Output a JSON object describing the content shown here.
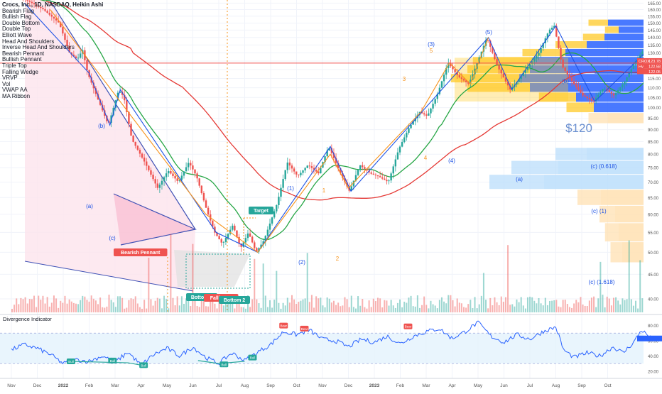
{
  "header": {
    "title": "Crocs, Inc., 1D, NASDAQ, Heikin Ashi",
    "indicators": [
      "Bearish Flag",
      "Bullish Flag",
      "Double Bottom",
      "Double Top",
      "Elliott Wave",
      "Head And Shoulders",
      "Inverse Head And Shoulders",
      "Bearish Pennant",
      "Bullish Pennant",
      "Triple Top",
      "Falling Wedge",
      "VRVP",
      "Vol",
      "VWAP AA",
      "MA Ribbon"
    ]
  },
  "chart_data": [
    {
      "type": "line",
      "title": "Crocs, Inc., 1D, NASDAQ, Heikin Ashi",
      "subtype": "heikin-ashi candlestick with volume, moving averages and Elliott wave annotations",
      "x_tick_labels": [
        "Nov",
        "Dec",
        "2022",
        "Feb",
        "Mar",
        "Apr",
        "May",
        "Jun",
        "Jul",
        "Aug",
        "Sep",
        "Oct",
        "Nov",
        "Dec",
        "2023",
        "Feb",
        "Mar",
        "Apr",
        "May",
        "Jun",
        "Jul",
        "Aug",
        "Sep",
        "Oct"
      ],
      "y_tick_labels": [
        "40.00",
        "45.00",
        "50.00",
        "55.00",
        "60.00",
        "65.00",
        "70.00",
        "75.00",
        "80.00",
        "85.00",
        "90.00",
        "95.00",
        "100.00",
        "105.00",
        "110.00",
        "115.00",
        "120.00",
        "125.00",
        "130.00",
        "135.00",
        "140.00",
        "145.00",
        "150.00",
        "155.00",
        "160.00",
        "165.00"
      ],
      "ylim": [
        37.5,
        167.5
      ],
      "scale": "log",
      "price_path": [
        {
          "t": 0,
          "v": 175
        },
        {
          "t": 1.3,
          "v": 160
        },
        {
          "t": 1.9,
          "v": 150
        },
        {
          "t": 2.3,
          "v": 130
        },
        {
          "t": 2.6,
          "v": 126
        },
        {
          "t": 2.8,
          "v": 132
        },
        {
          "t": 3.0,
          "v": 118
        },
        {
          "t": 3.4,
          "v": 104
        },
        {
          "t": 3.8,
          "v": 92
        },
        {
          "t": 4.2,
          "v": 109
        },
        {
          "t": 4.4,
          "v": 105
        },
        {
          "t": 4.7,
          "v": 86
        },
        {
          "t": 5.2,
          "v": 77
        },
        {
          "t": 5.7,
          "v": 68
        },
        {
          "t": 6.1,
          "v": 74
        },
        {
          "t": 6.5,
          "v": 70
        },
        {
          "t": 6.9,
          "v": 77
        },
        {
          "t": 7.2,
          "v": 72
        },
        {
          "t": 7.6,
          "v": 61
        },
        {
          "t": 7.9,
          "v": 55
        },
        {
          "t": 8.2,
          "v": 52
        },
        {
          "t": 8.6,
          "v": 57
        },
        {
          "t": 8.9,
          "v": 51
        },
        {
          "t": 9.2,
          "v": 55
        },
        {
          "t": 9.5,
          "v": 50
        },
        {
          "t": 9.8,
          "v": 53
        },
        {
          "t": 10.3,
          "v": 63
        },
        {
          "t": 10.7,
          "v": 77
        },
        {
          "t": 11.1,
          "v": 72
        },
        {
          "t": 11.5,
          "v": 76
        },
        {
          "t": 11.9,
          "v": 73
        },
        {
          "t": 12.3,
          "v": 83
        },
        {
          "t": 12.8,
          "v": 72
        },
        {
          "t": 13.1,
          "v": 67
        },
        {
          "t": 13.5,
          "v": 76
        },
        {
          "t": 13.9,
          "v": 73
        },
        {
          "t": 14.2,
          "v": 72
        },
        {
          "t": 14.6,
          "v": 70
        },
        {
          "t": 15.0,
          "v": 82
        },
        {
          "t": 15.4,
          "v": 91
        },
        {
          "t": 15.8,
          "v": 98
        },
        {
          "t": 16.1,
          "v": 96
        },
        {
          "t": 16.5,
          "v": 107
        },
        {
          "t": 16.9,
          "v": 124
        },
        {
          "t": 17.3,
          "v": 116
        },
        {
          "t": 17.7,
          "v": 112
        },
        {
          "t": 18.0,
          "v": 123
        },
        {
          "t": 18.4,
          "v": 140
        },
        {
          "t": 18.8,
          "v": 122
        },
        {
          "t": 19.3,
          "v": 109
        },
        {
          "t": 19.6,
          "v": 114
        },
        {
          "t": 20.0,
          "v": 122
        },
        {
          "t": 20.4,
          "v": 130
        },
        {
          "t": 20.8,
          "v": 145
        },
        {
          "t": 21.0,
          "v": 148
        },
        {
          "t": 21.3,
          "v": 122
        },
        {
          "t": 21.7,
          "v": 113
        },
        {
          "t": 22.1,
          "v": 106
        },
        {
          "t": 22.5,
          "v": 103
        },
        {
          "t": 22.9,
          "v": 110
        },
        {
          "t": 23.3,
          "v": 106
        },
        {
          "t": 23.7,
          "v": 113
        },
        {
          "t": 24.1,
          "v": 124
        },
        {
          "t": 24.4,
          "v": 131
        },
        {
          "t": 24.7,
          "v": 123.3
        }
      ],
      "last_price": 123.78,
      "price_labels": [
        {
          "label": "CROX",
          "value": "123.78",
          "color": "#ef5350"
        },
        {
          "label": "Hv",
          "value": "122.58",
          "color": "#ef5350"
        },
        {
          "label": "",
          "value": "122.05",
          "color": "#ef5350"
        }
      ],
      "annotations": [
        "(b)",
        "(a)",
        "(c)",
        "(1)",
        "(2)",
        "(3)",
        "(4)",
        "(5)",
        "1",
        "2",
        "3",
        "4",
        "5",
        "(b)",
        "(a)",
        "$120",
        "(c) (0.618)",
        "(c) (1)",
        "(c) (1.618)",
        "Target",
        "Bearish Pennant",
        "Bottom 1",
        "Falling W",
        "Bottom 2"
      ],
      "target_price_label": "$120",
      "grid": true,
      "colors": {
        "up": "#26a69a",
        "down": "#ef5350",
        "ma_slow": "#e53935",
        "ma_fast": "#26a645",
        "wave_blue": "#1e53e5",
        "wave_orange": "#f7931a"
      }
    },
    {
      "type": "line",
      "title": "Divergence Indicator",
      "y_tick_labels": [
        "80.00",
        "60.00",
        "40.00",
        "20.00"
      ],
      "ylim": [
        18,
        88
      ],
      "band": [
        30,
        70
      ],
      "series_path": [
        {
          "t": 0,
          "v": 48
        },
        {
          "t": 0.5,
          "v": 55
        },
        {
          "t": 1.0,
          "v": 50
        },
        {
          "t": 1.5,
          "v": 42
        },
        {
          "t": 2.0,
          "v": 30
        },
        {
          "t": 2.5,
          "v": 35
        },
        {
          "t": 3.0,
          "v": 33
        },
        {
          "t": 3.5,
          "v": 40
        },
        {
          "t": 4.0,
          "v": 32
        },
        {
          "t": 4.5,
          "v": 45
        },
        {
          "t": 5.0,
          "v": 28
        },
        {
          "t": 5.5,
          "v": 42
        },
        {
          "t": 6.0,
          "v": 50
        },
        {
          "t": 6.5,
          "v": 40
        },
        {
          "t": 7.0,
          "v": 52
        },
        {
          "t": 7.5,
          "v": 38
        },
        {
          "t": 8.0,
          "v": 30
        },
        {
          "t": 8.5,
          "v": 44
        },
        {
          "t": 9.0,
          "v": 34
        },
        {
          "t": 9.5,
          "v": 45
        },
        {
          "t": 10.0,
          "v": 55
        },
        {
          "t": 10.5,
          "v": 72
        },
        {
          "t": 11.0,
          "v": 68
        },
        {
          "t": 11.5,
          "v": 74
        },
        {
          "t": 12.0,
          "v": 62
        },
        {
          "t": 12.5,
          "v": 60
        },
        {
          "t": 13.0,
          "v": 52
        },
        {
          "t": 13.5,
          "v": 62
        },
        {
          "t": 14.0,
          "v": 58
        },
        {
          "t": 14.5,
          "v": 66
        },
        {
          "t": 15.0,
          "v": 56
        },
        {
          "t": 15.5,
          "v": 66
        },
        {
          "t": 16.0,
          "v": 72
        },
        {
          "t": 16.5,
          "v": 76
        },
        {
          "t": 17.0,
          "v": 63
        },
        {
          "t": 17.5,
          "v": 72
        },
        {
          "t": 18.0,
          "v": 84
        },
        {
          "t": 18.5,
          "v": 66
        },
        {
          "t": 19.0,
          "v": 58
        },
        {
          "t": 19.5,
          "v": 68
        },
        {
          "t": 20.0,
          "v": 62
        },
        {
          "t": 20.5,
          "v": 72
        },
        {
          "t": 21.0,
          "v": 78
        },
        {
          "t": 21.3,
          "v": 48
        },
        {
          "t": 21.7,
          "v": 38
        },
        {
          "t": 22.2,
          "v": 44
        },
        {
          "t": 22.7,
          "v": 40
        },
        {
          "t": 23.2,
          "v": 52
        },
        {
          "t": 23.6,
          "v": 44
        },
        {
          "t": 24.0,
          "v": 58
        },
        {
          "t": 24.3,
          "v": 74
        },
        {
          "t": 24.7,
          "v": 63
        }
      ],
      "signals": [
        "Bull",
        "Bull",
        "Bull",
        "Bull",
        "Bull",
        "Bear",
        "Bear",
        "Bear"
      ],
      "colors": {
        "line": "#2962ff",
        "band": "#e3f2fd",
        "bull": "#26a69a",
        "bear": "#ef5350"
      }
    }
  ]
}
